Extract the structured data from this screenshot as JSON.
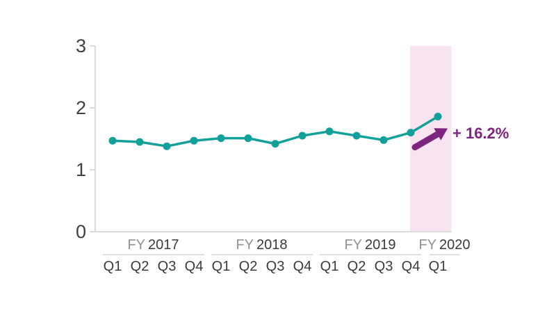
{
  "chart_data": {
    "type": "line",
    "title": "",
    "categories": [
      "Q1 FY2017",
      "Q2 FY2017",
      "Q3 FY2017",
      "Q4 FY2017",
      "Q1 FY2018",
      "Q2 FY2018",
      "Q3 FY2018",
      "Q4 FY2018",
      "Q1 FY2019",
      "Q2 FY2019",
      "Q3 FY2019",
      "Q4 FY2019",
      "Q1 FY2020"
    ],
    "values": [
      1.47,
      1.45,
      1.38,
      1.47,
      1.51,
      1.51,
      1.42,
      1.55,
      1.62,
      1.55,
      1.48,
      1.6,
      1.86
    ],
    "fiscal_years": [
      {
        "prefix": "FY",
        "year": "2017",
        "quarters": [
          "Q1",
          "Q2",
          "Q3",
          "Q4"
        ]
      },
      {
        "prefix": "FY",
        "year": "2018",
        "quarters": [
          "Q1",
          "Q2",
          "Q3",
          "Q4"
        ]
      },
      {
        "prefix": "FY",
        "year": "2019",
        "quarters": [
          "Q1",
          "Q2",
          "Q3",
          "Q4"
        ]
      },
      {
        "prefix": "FY",
        "year": "2020",
        "quarters": [
          "Q1"
        ]
      }
    ],
    "xlabel": "",
    "ylabel": "",
    "ylim": [
      0,
      3
    ],
    "yticks": [
      0,
      1,
      2,
      3
    ],
    "grid": false,
    "legend": "none",
    "highlight": {
      "from_category": "Q4 FY2019",
      "to_category": "Q1 FY2020",
      "color": "#f8e3f1"
    },
    "annotation": {
      "text": "+ 16.2%",
      "color": "#7d2480"
    },
    "colors": {
      "line": "#12a09a",
      "marker": "#12a09a",
      "axis": "#dbdbdb",
      "y_tick_label": "#3f3f3f",
      "quarter_label": "#3a3a3a",
      "fy_prefix": "#919191",
      "fy_year": "#3a3a3a",
      "group_rule": "#dedede",
      "background": "#ffffff"
    }
  }
}
